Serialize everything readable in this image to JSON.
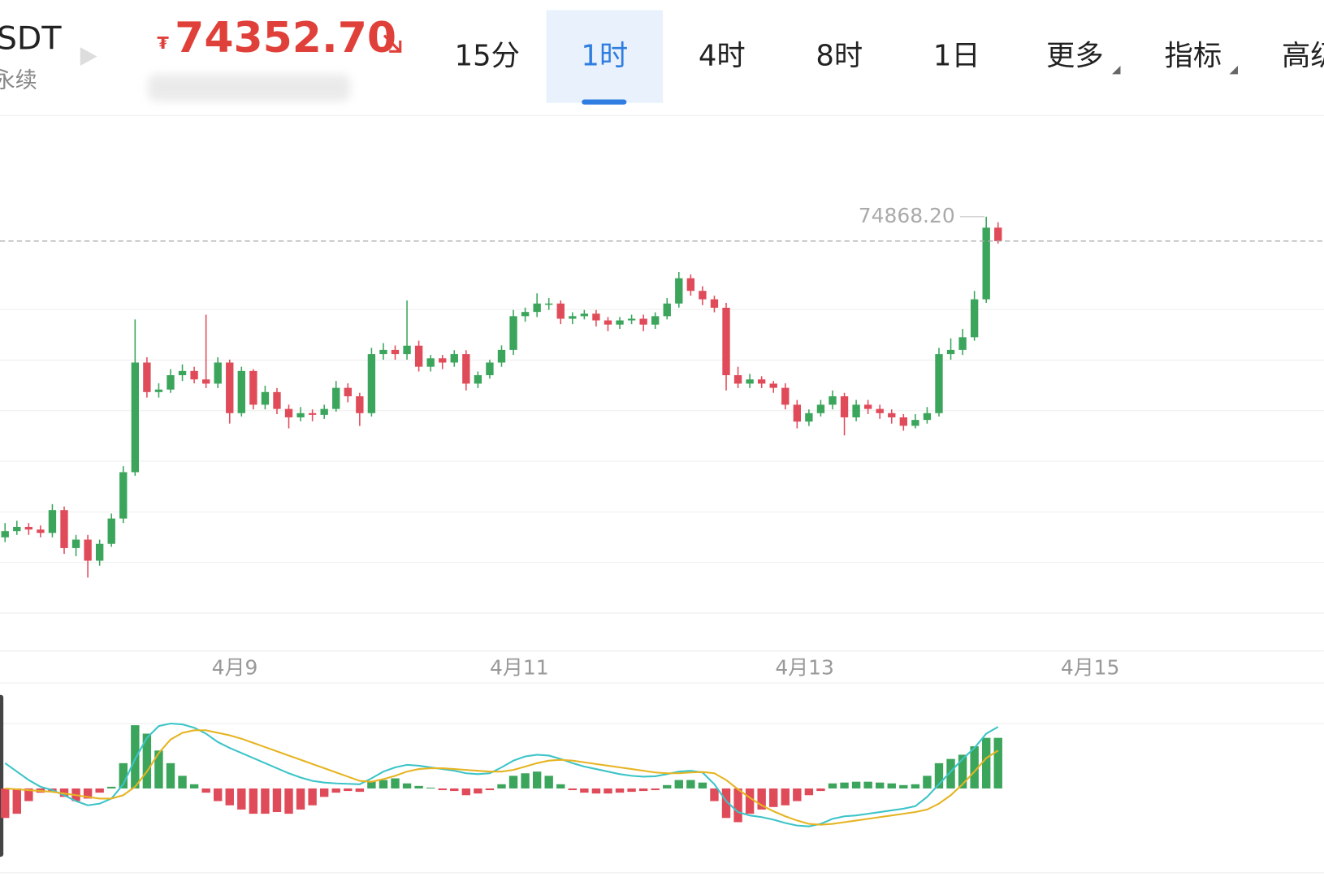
{
  "header": {
    "symbol": "SDT",
    "subtitle": "永续",
    "currency": "₮",
    "price": "74352.70",
    "tabs": [
      "15分",
      "1时",
      "4时",
      "8时",
      "1日",
      "更多",
      "指标",
      "高级"
    ],
    "active_tab": 1
  },
  "chart_data": {
    "type": "candlestick",
    "up_color": "#3ba55c",
    "down_color": "#e04b5a",
    "ylim": [
      65700,
      76950
    ],
    "xticks": [
      {
        "value": 19.43,
        "label": "4月9"
      },
      {
        "value": 43.5,
        "label": "4月11"
      },
      {
        "value": 67.64,
        "label": "4月13"
      },
      {
        "value": 91.79,
        "label": "4月15"
      }
    ],
    "max_high": {
      "value": 74868.2,
      "label": "74868.20"
    },
    "candles": [
      [
        68100,
        68400,
        68000,
        68229
      ],
      [
        68229,
        68450,
        68150,
        68318
      ],
      [
        68318,
        68400,
        68150,
        68264
      ],
      [
        68264,
        68350,
        68100,
        68193
      ],
      [
        68193,
        68800,
        68100,
        68674
      ],
      [
        68674,
        68750,
        67750,
        67873
      ],
      [
        67873,
        68150,
        67700,
        68051
      ],
      [
        68051,
        68150,
        67250,
        67606
      ],
      [
        67606,
        68050,
        67500,
        67962
      ],
      [
        67962,
        68600,
        67900,
        68496
      ],
      [
        68496,
        69600,
        68400,
        69475
      ],
      [
        69475,
        72700,
        69400,
        71789
      ],
      [
        71789,
        71900,
        71050,
        71166
      ],
      [
        71166,
        71350,
        71050,
        71219
      ],
      [
        71219,
        71650,
        71150,
        71522
      ],
      [
        71522,
        71750,
        71400,
        71611
      ],
      [
        71611,
        71700,
        71350,
        71433
      ],
      [
        71433,
        72800,
        71250,
        71344
      ],
      [
        71344,
        71900,
        71250,
        71789
      ],
      [
        71789,
        71850,
        70500,
        70721
      ],
      [
        70721,
        71700,
        70650,
        71611
      ],
      [
        71611,
        71650,
        70800,
        70899
      ],
      [
        70899,
        71300,
        70800,
        71166
      ],
      [
        71166,
        71250,
        70700,
        70810
      ],
      [
        70810,
        70900,
        70400,
        70632
      ],
      [
        70632,
        70850,
        70550,
        70721
      ],
      [
        70721,
        70800,
        70550,
        70685
      ],
      [
        70685,
        70900,
        70600,
        70810
      ],
      [
        70810,
        71400,
        70750,
        71255
      ],
      [
        71255,
        71350,
        70950,
        71077
      ],
      [
        71077,
        71150,
        70450,
        70721
      ],
      [
        70721,
        72100,
        70650,
        71967
      ],
      [
        71967,
        72200,
        71850,
        72056
      ],
      [
        72056,
        72150,
        71850,
        71967
      ],
      [
        71967,
        73100,
        71850,
        72145
      ],
      [
        72145,
        72250,
        71600,
        71700
      ],
      [
        71700,
        71950,
        71600,
        71878
      ],
      [
        71878,
        71950,
        71650,
        71789
      ],
      [
        71789,
        72050,
        71700,
        71967
      ],
      [
        71967,
        72050,
        71200,
        71344
      ],
      [
        71344,
        71600,
        71250,
        71522
      ],
      [
        71522,
        71850,
        71450,
        71789
      ],
      [
        71789,
        72150,
        71700,
        72056
      ],
      [
        72056,
        72900,
        71950,
        72768
      ],
      [
        72768,
        72950,
        72650,
        72857
      ],
      [
        72857,
        73250,
        72750,
        73035
      ],
      [
        73035,
        73150,
        72900,
        73035
      ],
      [
        73035,
        73100,
        72600,
        72714
      ],
      [
        72714,
        72850,
        72600,
        72768
      ],
      [
        72768,
        72900,
        72700,
        72821
      ],
      [
        72821,
        72900,
        72550,
        72679
      ],
      [
        72679,
        72750,
        72450,
        72590
      ],
      [
        72590,
        72750,
        72500,
        72679
      ],
      [
        72679,
        72800,
        72600,
        72714
      ],
      [
        72714,
        72800,
        72450,
        72590
      ],
      [
        72590,
        72850,
        72500,
        72768
      ],
      [
        72768,
        73150,
        72700,
        73035
      ],
      [
        73035,
        73700,
        72950,
        73569
      ],
      [
        73569,
        73650,
        73200,
        73302
      ],
      [
        73302,
        73400,
        73000,
        73124
      ],
      [
        73124,
        73200,
        72850,
        72946
      ],
      [
        72946,
        73050,
        71200,
        71522
      ],
      [
        71522,
        71700,
        71250,
        71344
      ],
      [
        71344,
        71550,
        71250,
        71433
      ],
      [
        71433,
        71500,
        71250,
        71344
      ],
      [
        71344,
        71400,
        71150,
        71255
      ],
      [
        71255,
        71350,
        70800,
        70899
      ],
      [
        70899,
        71000,
        70400,
        70543
      ],
      [
        70543,
        70800,
        70450,
        70721
      ],
      [
        70721,
        71000,
        70650,
        70899
      ],
      [
        70899,
        71200,
        70800,
        71077
      ],
      [
        71077,
        71150,
        70250,
        70632
      ],
      [
        70632,
        71000,
        70550,
        70899
      ],
      [
        70899,
        71000,
        70700,
        70810
      ],
      [
        70810,
        70900,
        70600,
        70721
      ],
      [
        70721,
        70800,
        70500,
        70632
      ],
      [
        70632,
        70700,
        70350,
        70454
      ],
      [
        70454,
        70700,
        70400,
        70578
      ],
      [
        70578,
        70850,
        70500,
        70721
      ],
      [
        70721,
        72100,
        70650,
        71967
      ],
      [
        71967,
        72300,
        71850,
        72056
      ],
      [
        72056,
        72500,
        71950,
        72323
      ],
      [
        72323,
        73300,
        72250,
        73124
      ],
      [
        73124,
        74868.2,
        73050,
        74637
      ],
      [
        74637,
        74750,
        74300,
        74352.7
      ]
    ],
    "macd": {
      "ylim": [
        -1100,
        1100
      ],
      "dif_color": "#3cc4c8",
      "dea_color": "#e6b422",
      "hist": [
        -350,
        -300,
        -150,
        -50,
        -30,
        -100,
        -150,
        -120,
        -50,
        20,
        300,
        750,
        650,
        450,
        300,
        150,
        50,
        -50,
        -150,
        -200,
        -250,
        -300,
        -300,
        -280,
        -300,
        -250,
        -200,
        -100,
        -50,
        -30,
        -40,
        80,
        100,
        120,
        60,
        30,
        10,
        -20,
        -30,
        -80,
        -60,
        -20,
        50,
        150,
        180,
        200,
        150,
        50,
        -20,
        -50,
        -60,
        -60,
        -50,
        -40,
        -30,
        -20,
        40,
        100,
        100,
        70,
        -150,
        -350,
        -400,
        -300,
        -250,
        -220,
        -200,
        -150,
        -80,
        -30,
        60,
        70,
        80,
        80,
        70,
        60,
        40,
        50,
        150,
        300,
        350,
        400,
        500,
        600,
        600
      ],
      "dif": [
        300,
        200,
        100,
        20,
        -20,
        -80,
        -150,
        -200,
        -180,
        -120,
        50,
        350,
        600,
        740,
        770,
        760,
        720,
        650,
        550,
        480,
        420,
        360,
        300,
        240,
        180,
        130,
        90,
        70,
        60,
        55,
        50,
        120,
        200,
        250,
        280,
        270,
        250,
        230,
        210,
        180,
        170,
        180,
        250,
        330,
        380,
        400,
        390,
        350,
        300,
        260,
        230,
        200,
        170,
        150,
        140,
        145,
        170,
        200,
        210,
        190,
        50,
        -150,
        -280,
        -320,
        -340,
        -370,
        -410,
        -440,
        -450,
        -420,
        -360,
        -330,
        -320,
        -300,
        -280,
        -260,
        -240,
        -210,
        -100,
        50,
        200,
        350,
        480,
        650,
        730
      ],
      "dea": [
        0,
        -10,
        -20,
        -30,
        -40,
        -60,
        -80,
        -100,
        -120,
        -120,
        -80,
        20,
        200,
        420,
        580,
        660,
        690,
        690,
        660,
        630,
        590,
        540,
        490,
        440,
        390,
        340,
        290,
        240,
        190,
        140,
        90,
        80,
        110,
        150,
        200,
        230,
        240,
        240,
        230,
        220,
        210,
        200,
        200,
        220,
        260,
        300,
        330,
        340,
        330,
        310,
        290,
        270,
        250,
        230,
        210,
        190,
        180,
        180,
        190,
        195,
        180,
        100,
        -10,
        -110,
        -200,
        -270,
        -330,
        -380,
        -420,
        -430,
        -420,
        -400,
        -380,
        -360,
        -340,
        -320,
        -300,
        -280,
        -250,
        -180,
        -80,
        50,
        200,
        360,
        450
      ]
    }
  }
}
